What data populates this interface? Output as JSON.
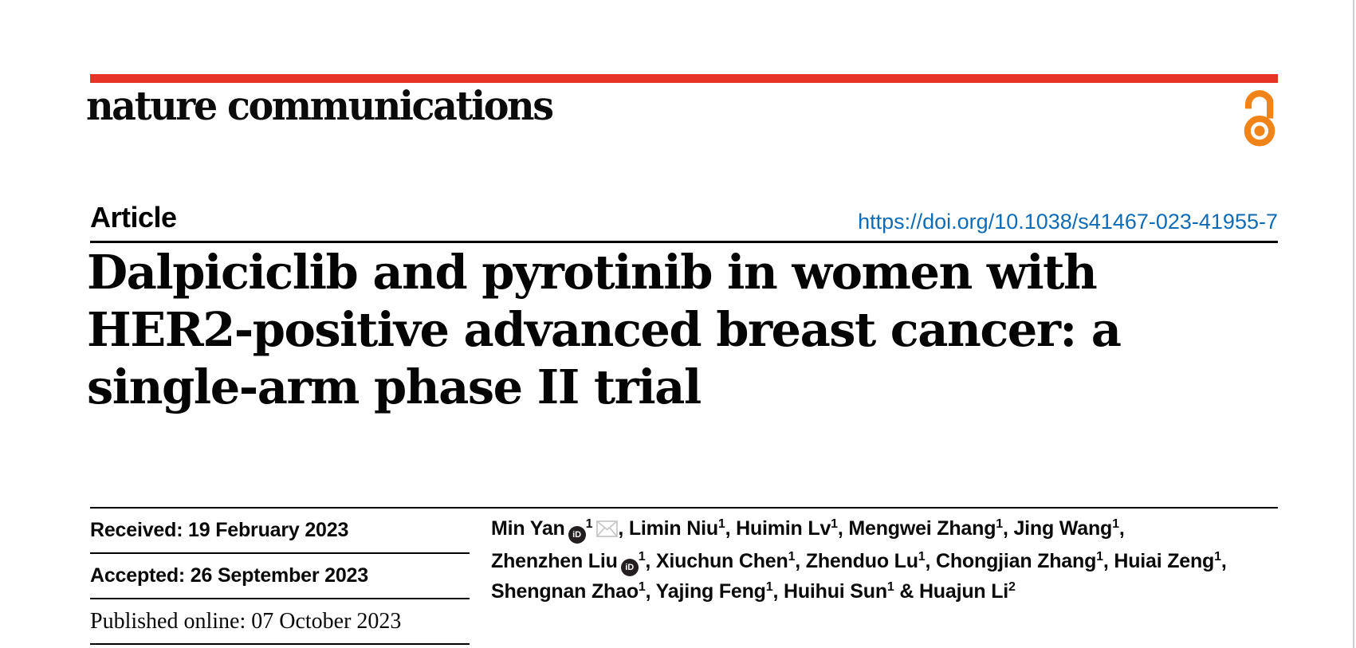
{
  "colors": {
    "brand_red": "#e63323",
    "open_access_orange": "#f08419",
    "link_blue": "#0f6cb4",
    "rule_black": "#000000",
    "page_border_gray": "#cdd0d3",
    "email_icon_gray": "#c6c6c6",
    "orcid_icon_black": "#231f20"
  },
  "icons": {
    "open_access": "open-padlock",
    "orcid": "iD",
    "email": "envelope"
  },
  "masthead": {
    "journal_name": "nature communications"
  },
  "article_header": {
    "article_type": "Article",
    "doi_link": "https://doi.org/10.1038/s41467-023-41955-7"
  },
  "title": {
    "lines": [
      "Dalpiciclib and pyrotinib in women with",
      "HER2-positive advanced breast cancer: a",
      "single-arm phase II trial"
    ]
  },
  "dates": {
    "received": "Received: 19 February 2023",
    "accepted": "Accepted: 26 September 2023",
    "published_online": "Published online: 07 October 2023"
  },
  "authors": {
    "orcid_icon_label": "iD",
    "lines": [
      [
        {
          "text": "Min Yan",
          "orcid": true,
          "sup": "1",
          "email": true,
          "tail": ", "
        },
        {
          "text": "Limin Niu",
          "sup": "1",
          "tail": ", "
        },
        {
          "text": "Huimin Lv",
          "sup": "1",
          "tail": ", "
        },
        {
          "text": "Mengwei Zhang",
          "sup": "1",
          "tail": ", "
        },
        {
          "text": "Jing Wang",
          "sup": "1",
          "tail": ","
        }
      ],
      [
        {
          "text": "Zhenzhen Liu",
          "orcid": true,
          "sup": "1",
          "tail": ", "
        },
        {
          "text": "Xiuchun Chen",
          "sup": "1",
          "tail": ", "
        },
        {
          "text": "Zhenduo Lu",
          "sup": "1",
          "tail": ", "
        },
        {
          "text": "Chongjian Zhang",
          "sup": "1",
          "tail": ", "
        },
        {
          "text": "Huiai Zeng",
          "sup": "1",
          "tail": ","
        }
      ],
      [
        {
          "text": "Shengnan Zhao",
          "sup": "1",
          "tail": ", "
        },
        {
          "text": "Yajing Feng",
          "sup": "1",
          "tail": ", "
        },
        {
          "text": "Huihui Sun",
          "sup": "1",
          "tail": " & "
        },
        {
          "text": "Huajun Li",
          "sup": "2",
          "tail": ""
        }
      ]
    ]
  }
}
